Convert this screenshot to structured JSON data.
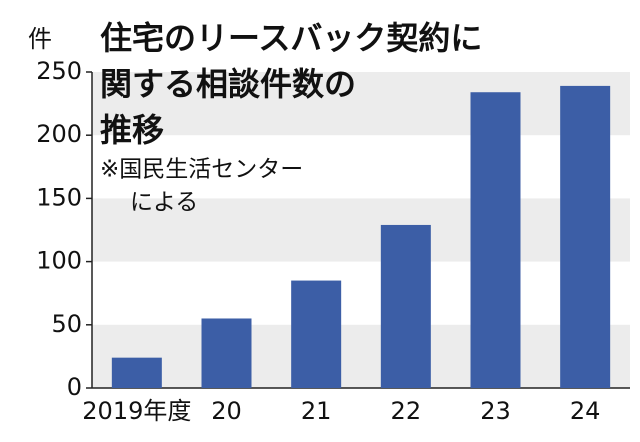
{
  "chart_data": {
    "type": "bar",
    "title": [
      "住宅のリースバック契約に",
      "関する相談件数の",
      "推移"
    ],
    "note": [
      "※国民生活センター",
      "による"
    ],
    "y_label": "件",
    "categories": [
      "2019年度",
      "20",
      "21",
      "22",
      "23",
      "24"
    ],
    "values": [
      24,
      55,
      85,
      129,
      234,
      239
    ],
    "color": "#3c5ea6",
    "ylim": [
      0,
      250
    ],
    "yticks": [
      0,
      50,
      100,
      150,
      200,
      250
    ],
    "grid": true
  }
}
